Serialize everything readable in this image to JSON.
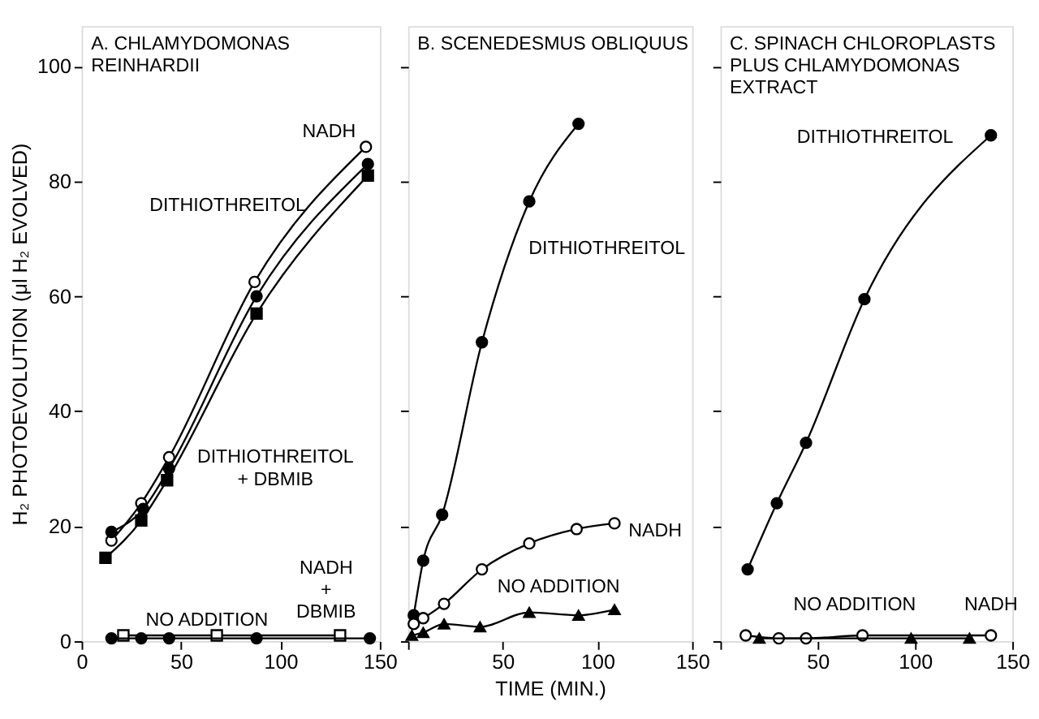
{
  "chart_data": [
    {
      "type": "line",
      "title": "A. CHLAMYDOMONAS\nREINHARDII",
      "ylabel": "H₂ PHOTOEVOLUTION (μl H₂ EVOLVED)",
      "xlim": [
        0,
        150
      ],
      "ylim": [
        0,
        107
      ],
      "xticks": [
        0,
        50,
        100,
        150
      ],
      "yticks": [
        0,
        20,
        40,
        60,
        80,
        100
      ],
      "grid": false,
      "series": [
        {
          "name": "NADH",
          "color": "#000000",
          "marker": "circle",
          "colors": [
            "#ffffff",
            "#ffffff",
            "#ffffff",
            "#ffffff",
            "#ffffff"
          ],
          "x": [
            15,
            30,
            44,
            87,
            143
          ],
          "values": [
            17.5,
            24,
            32,
            62.5,
            86
          ]
        },
        {
          "name": "DITHIOTHREITOL",
          "color": "#000000",
          "marker": "circle",
          "colors": [
            "#000000",
            "#000000",
            "#000000",
            "#000000",
            "#000000"
          ],
          "x": [
            15,
            31,
            44,
            88,
            144
          ],
          "values": [
            19,
            23,
            30,
            60,
            83
          ]
        },
        {
          "name": "DITHIOTHREITOL\n+ DBMIB",
          "color": "#000000",
          "marker": "square",
          "colors": [
            "#000000",
            "#000000",
            "#000000",
            "#000000",
            "#000000"
          ],
          "x": [
            12,
            30,
            43,
            88,
            144
          ],
          "values": [
            14.5,
            21,
            28,
            57,
            81
          ]
        },
        {
          "name": "NADH\n+\nDBMIB",
          "color": "#000000",
          "marker": "square",
          "colors": [
            "#ffffff",
            "#ffffff",
            "#ffffff"
          ],
          "x": [
            21,
            68,
            130
          ],
          "values": [
            1,
            1,
            1
          ]
        },
        {
          "name": "NO ADDITION",
          "color": "#000000",
          "marker": "circle",
          "colors": [
            "#000000",
            "#000000",
            "#000000",
            "#000000",
            "#000000"
          ],
          "x": [
            15,
            30,
            44,
            88,
            145
          ],
          "values": [
            0.5,
            0.5,
            0.5,
            0.5,
            0.5
          ]
        }
      ]
    },
    {
      "type": "line",
      "title": "B. SCENEDESMUS OBLIQUUS",
      "xlabel": "TIME (MIN.)",
      "xlim": [
        0,
        150
      ],
      "ylim": [
        0,
        107
      ],
      "xticks": [
        {
          "value": 0,
          "label": null
        },
        50,
        100,
        150
      ],
      "yticks": [
        0,
        20,
        40,
        60,
        80,
        100
      ],
      "tick_labels": "x",
      "grid": false,
      "series": [
        {
          "name": "DITHIOTHREITOL",
          "color": "#000000",
          "marker": "circle",
          "colors": [
            "#000000",
            "#000000",
            "#000000",
            "#000000",
            "#000000",
            "#000000"
          ],
          "x": [
            3,
            8,
            18,
            39,
            64,
            90
          ],
          "values": [
            4.5,
            14,
            22,
            52,
            76.5,
            90
          ]
        },
        {
          "name": "NADH",
          "color": "#000000",
          "marker": "circle",
          "colors": [
            "#ffffff",
            "#ffffff",
            "#ffffff",
            "#ffffff",
            "#ffffff",
            "#ffffff",
            "#ffffff"
          ],
          "x": [
            3,
            8,
            19,
            39,
            64,
            89,
            109
          ],
          "values": [
            3,
            4,
            6.5,
            12.5,
            17,
            19.5,
            20.5
          ]
        },
        {
          "name": "NO ADDITION",
          "color": "#000000",
          "marker": "triangle",
          "colors": [
            "#000000",
            "#000000",
            "#000000",
            "#000000",
            "#000000",
            "#000000",
            "#000000"
          ],
          "x": [
            2,
            8,
            19,
            38,
            64,
            90,
            109
          ],
          "values": [
            1,
            1.5,
            3,
            2.5,
            5,
            4.5,
            5.5
          ]
        }
      ]
    },
    {
      "type": "line",
      "title": "C. SPINACH CHLOROPLASTS\nPLUS CHLAMYDOMONAS\nEXTRACT",
      "xlim": [
        0,
        150
      ],
      "ylim": [
        0,
        107
      ],
      "xticks": [
        {
          "value": 0,
          "label": null
        },
        50,
        100,
        150
      ],
      "yticks": [
        0,
        20,
        40,
        60,
        80,
        100
      ],
      "tick_labels": "x",
      "grid": false,
      "series": [
        {
          "name": "DITHIOTHREITOL",
          "color": "#000000",
          "marker": "circle",
          "colors": [
            "#000000",
            "#000000",
            "#000000",
            "#000000",
            "#000000"
          ],
          "x": [
            14,
            29,
            44,
            74,
            139
          ],
          "values": [
            12.5,
            24,
            34.5,
            59.5,
            88
          ]
        },
        {
          "name": "NADH",
          "color": "#000000",
          "marker": "circle",
          "colors": [
            "#ffffff",
            "#ffffff",
            "#ffffff",
            "#ffffff",
            "#ffffff"
          ],
          "x": [
            13,
            30,
            44,
            73,
            139
          ],
          "values": [
            1,
            0.5,
            0.5,
            1,
            1
          ]
        },
        {
          "name": "NO ADDITION",
          "color": "#000000",
          "marker": "triangle",
          "colors": [
            "#000000",
            "#000000",
            "#000000"
          ],
          "x": [
            20,
            98,
            128
          ],
          "values": [
            0.5,
            0.5,
            0.5
          ]
        }
      ]
    }
  ]
}
